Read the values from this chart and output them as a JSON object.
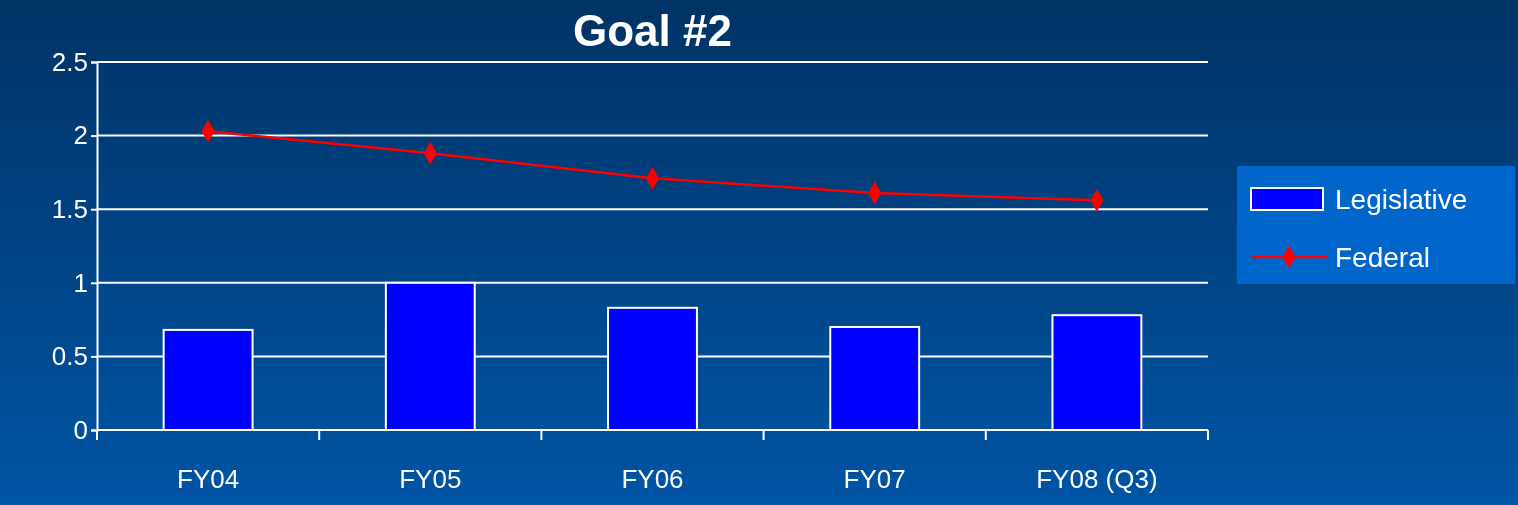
{
  "chart_data": {
    "type": "bar",
    "title": "Goal #2",
    "categories": [
      "FY04",
      "FY05",
      "FY06",
      "FY07",
      "FY08 (Q3)"
    ],
    "series": [
      {
        "name": "Legislative",
        "color": "#0000ff",
        "values": [
          0.68,
          1.0,
          0.83,
          0.7,
          0.78
        ]
      },
      {
        "name": "Federal",
        "type": "line",
        "color": "#ff0000",
        "values": [
          2.03,
          1.88,
          1.71,
          1.61,
          1.56
        ]
      }
    ],
    "ylim": [
      0,
      2.5
    ],
    "yticks": [
      0,
      0.5,
      1,
      1.5,
      2,
      2.5
    ],
    "grid": "y",
    "legend": "right",
    "marker": "diamond"
  }
}
